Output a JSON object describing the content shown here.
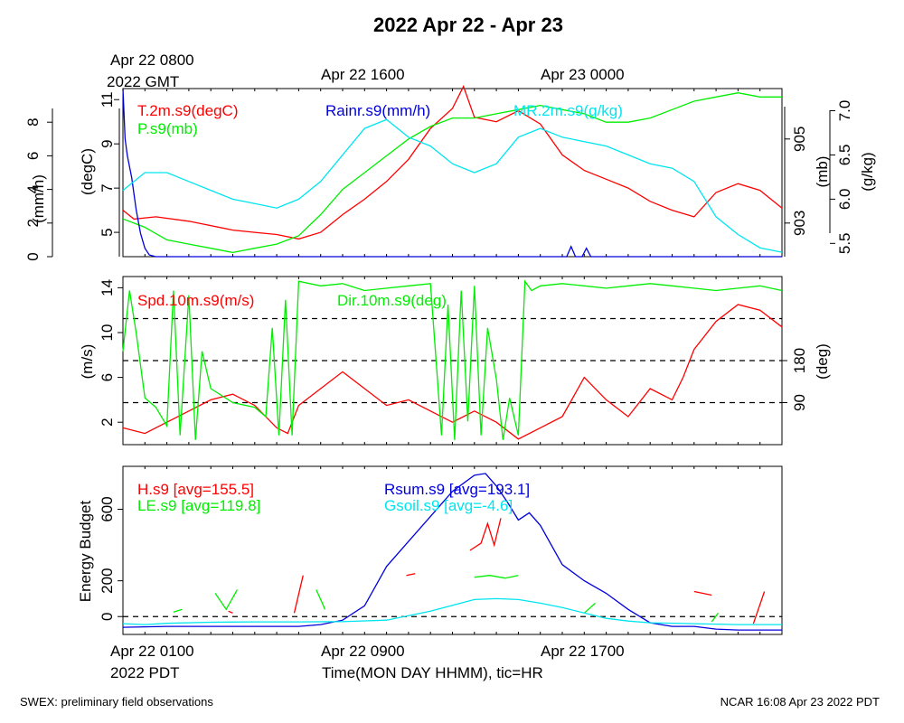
{
  "chart_data": [
    {
      "type": "line",
      "title": "2022 Apr 22 - Apr 23",
      "top_axis_labels": [
        "Apr 22 0800",
        "2022 GMT",
        "Apr 22 1600",
        "Apr 23 0000"
      ],
      "x_hours": [
        0,
        30
      ],
      "left_axes": [
        {
          "unit": "(mm/h)",
          "ticks": [
            "0",
            "2",
            "4",
            "6",
            "8"
          ],
          "range": [
            0,
            10
          ]
        },
        {
          "unit": "(degC)",
          "ticks": [
            "5",
            "7",
            "9",
            "11"
          ],
          "range": [
            3.9,
            11.5
          ]
        }
      ],
      "right_axes": [
        {
          "unit": "(mb)",
          "ticks": [
            "903",
            "905"
          ],
          "range": [
            902.2,
            906.2
          ]
        },
        {
          "unit": "(g/kg)",
          "ticks": [
            "5.5",
            "6.0",
            "6.5",
            "7.0"
          ],
          "range": [
            5.35,
            7.25
          ]
        }
      ],
      "series": [
        {
          "name": "T.2m.s9(degC)",
          "color": "#ff0000",
          "axis": "degC",
          "x": [
            0,
            0.5,
            1.5,
            3,
            5,
            6,
            7,
            8,
            9,
            10,
            11,
            12,
            13,
            14,
            15,
            15.5,
            16,
            17,
            18,
            19,
            20,
            21,
            22,
            23,
            24,
            25,
            26,
            27,
            28,
            29,
            30
          ],
          "y": [
            6.0,
            5.6,
            5.7,
            5.5,
            5.1,
            5.0,
            4.9,
            4.7,
            5.0,
            5.8,
            6.5,
            7.3,
            8.3,
            9.7,
            10.6,
            11.6,
            10.2,
            10.0,
            10.5,
            9.9,
            8.5,
            7.8,
            7.4,
            7.0,
            6.4,
            6.0,
            5.7,
            6.8,
            7.2,
            6.9,
            6.1
          ]
        },
        {
          "name": "P.s9(mb)",
          "color": "#00ee00",
          "axis": "mb",
          "x": [
            0,
            1,
            2,
            3,
            4,
            5,
            6,
            7,
            8,
            9,
            10,
            11,
            12,
            13,
            14,
            15,
            16,
            17,
            18,
            19,
            20,
            21,
            22,
            23,
            24,
            25,
            26,
            27,
            28,
            29,
            30
          ],
          "y": [
            903.1,
            902.9,
            902.6,
            902.5,
            902.4,
            902.3,
            902.4,
            902.5,
            902.7,
            903.2,
            903.8,
            904.2,
            904.6,
            905.0,
            905.3,
            905.5,
            905.5,
            905.6,
            905.7,
            905.8,
            905.7,
            905.6,
            905.4,
            905.4,
            905.5,
            905.7,
            905.9,
            906.0,
            906.1,
            906.0,
            906.0
          ]
        },
        {
          "name": "Rainr.s9(mm/h)",
          "color": "#0000dd",
          "axis": "mm/h",
          "x": [
            0,
            0.1,
            0.2,
            0.4,
            0.6,
            0.8,
            1.0,
            1.2,
            1.5,
            2,
            10,
            20.2,
            20.4,
            20.6,
            20.9,
            21.1,
            21.3,
            30
          ],
          "y": [
            10,
            7.0,
            6.0,
            4.7,
            2.8,
            1.4,
            0.5,
            0.1,
            0,
            0,
            0,
            0,
            0.6,
            0,
            0,
            0.5,
            0,
            0
          ]
        },
        {
          "name": "MR.2m.s9(g/kg)",
          "color": "#00e5ee",
          "axis": "g/kg",
          "x": [
            0,
            1,
            2,
            3,
            4,
            5,
            6,
            7,
            8,
            9,
            10,
            11,
            12,
            13,
            14,
            15,
            16,
            17,
            18,
            19,
            20,
            21,
            22,
            23,
            24,
            25,
            26,
            27,
            28,
            29,
            30
          ],
          "y": [
            6.1,
            6.3,
            6.3,
            6.2,
            6.1,
            6.0,
            5.95,
            5.9,
            6.0,
            6.2,
            6.5,
            6.8,
            6.9,
            6.7,
            6.6,
            6.4,
            6.3,
            6.4,
            6.7,
            6.8,
            6.7,
            6.65,
            6.6,
            6.5,
            6.4,
            6.35,
            6.2,
            5.8,
            5.6,
            5.45,
            5.4
          ]
        }
      ]
    },
    {
      "type": "line",
      "x_hours": [
        0,
        30
      ],
      "left_axis": {
        "unit": "(m/s)",
        "ticks": [
          "2",
          "6",
          "10",
          "14"
        ],
        "range": [
          0,
          15
        ]
      },
      "right_axis": {
        "unit": "(deg)",
        "ticks": [
          "90",
          "180"
        ],
        "range": [
          0,
          360
        ]
      },
      "reference_lines_deg": [
        90,
        180,
        270
      ],
      "series": [
        {
          "name": "Spd.10m.s9(m/s)",
          "color": "#ff0000",
          "axis": "m/s",
          "x": [
            0,
            1,
            2,
            3,
            4,
            5,
            6,
            7,
            7.5,
            8,
            9,
            10,
            11,
            12,
            13,
            14,
            15,
            16,
            17,
            18,
            19,
            20,
            21,
            22,
            23,
            24,
            25,
            25.5,
            26,
            27,
            28,
            29,
            30
          ],
          "y": [
            1.5,
            1.0,
            2.0,
            3.0,
            4.0,
            4.5,
            3.5,
            1.5,
            1.0,
            3.5,
            5.0,
            6.5,
            5.0,
            3.5,
            4.0,
            3.0,
            2.0,
            3.0,
            2.0,
            0.5,
            1.5,
            2.5,
            6.0,
            4.0,
            2.5,
            5.0,
            4.0,
            6.0,
            8.5,
            11.0,
            12.5,
            12.0,
            10.5
          ]
        },
        {
          "name": "Dir.10m.s9(deg)",
          "color": "#00ee00",
          "axis": "deg",
          "x": [
            0,
            0.3,
            0.6,
            1,
            1.5,
            2,
            2.3,
            2.6,
            3,
            3.3,
            3.6,
            4,
            5,
            6,
            6.5,
            6.8,
            7.1,
            7.4,
            7.7,
            8,
            9,
            10,
            11,
            12,
            13,
            14,
            14.5,
            14.8,
            15.1,
            15.4,
            15.7,
            16,
            16.3,
            16.6,
            17,
            17.3,
            17.6,
            18,
            18.3,
            18.6,
            19,
            20,
            21,
            22,
            23,
            24,
            25,
            26,
            27,
            28,
            29,
            30
          ],
          "y": [
            200,
            330,
            240,
            100,
            80,
            40,
            330,
            20,
            320,
            10,
            200,
            120,
            90,
            80,
            60,
            250,
            20,
            310,
            20,
            350,
            340,
            345,
            330,
            335,
            340,
            345,
            20,
            300,
            10,
            330,
            50,
            340,
            20,
            250,
            140,
            10,
            100,
            20,
            350,
            330,
            340,
            345,
            340,
            335,
            340,
            345,
            340,
            335,
            330,
            335,
            340,
            330
          ]
        }
      ]
    },
    {
      "type": "line",
      "x_hours": [
        0,
        30
      ],
      "bottom_axis_labels": [
        "Apr 22 0100",
        "Apr 22 0900",
        "Apr 22 1700"
      ],
      "x_date_label": "2022 PDT",
      "xlabel": "Time(MON DAY HHMM), tic=HR",
      "ylabel": "Energy Budget",
      "y_ticks": [
        "0",
        "200",
        "600"
      ],
      "ylim": [
        -100,
        840
      ],
      "series": [
        {
          "name": "H.s9 [avg=155.5]",
          "color": "#ff0000",
          "segments": [
            {
              "x": [
                12.9,
                13.3
              ],
              "y": [
                230,
                240
              ]
            },
            {
              "x": [
                15.8,
                16.3,
                16.6,
                16.9,
                17.2
              ],
              "y": [
                370,
                410,
                520,
                400,
                550
              ]
            },
            {
              "x": [
                4.8,
                5.0
              ],
              "y": [
                30,
                20
              ]
            },
            {
              "x": [
                7.8,
                8.2
              ],
              "y": [
                20,
                230
              ]
            },
            {
              "x": [
                26.0,
                26.8
              ],
              "y": [
                140,
                120
              ]
            },
            {
              "x": [
                28.7,
                29.2
              ],
              "y": [
                -40,
                140
              ]
            }
          ]
        },
        {
          "name": "LE.s9 [avg=119.8]",
          "color": "#00ee00",
          "segments": [
            {
              "x": [
                2.3,
                2.7
              ],
              "y": [
                25,
                40
              ]
            },
            {
              "x": [
                4.2,
                4.7,
                5.2
              ],
              "y": [
                130,
                40,
                150
              ]
            },
            {
              "x": [
                8.8,
                9.2
              ],
              "y": [
                150,
                40
              ]
            },
            {
              "x": [
                16.0,
                16.7,
                17.4,
                18.0
              ],
              "y": [
                220,
                230,
                215,
                230
              ]
            },
            {
              "x": [
                21.0,
                21.5
              ],
              "y": [
                20,
                75
              ]
            },
            {
              "x": [
                26.8,
                27.1
              ],
              "y": [
                -30,
                20
              ]
            }
          ]
        },
        {
          "name": "Rsum.s9 [avg=193.1]",
          "color": "#0000dd",
          "x": [
            0,
            2,
            4,
            6,
            8,
            9,
            10,
            11,
            12,
            13,
            14,
            15,
            16,
            16.5,
            17,
            17.5,
            18,
            18.5,
            19,
            20,
            21,
            22,
            23,
            24,
            25,
            26,
            27,
            28,
            29,
            30
          ],
          "y": [
            -60,
            -55,
            -55,
            -55,
            -55,
            -45,
            -20,
            60,
            280,
            420,
            560,
            700,
            790,
            800,
            730,
            640,
            540,
            580,
            510,
            290,
            200,
            130,
            40,
            -35,
            -55,
            -55,
            -70,
            -75,
            -75,
            -75
          ]
        },
        {
          "name": "Gsoil.s9 [avg=-4.6]",
          "color": "#00e5ee",
          "x": [
            0,
            1,
            2,
            4,
            6,
            8,
            10,
            12,
            14,
            16,
            17,
            18,
            19,
            20,
            21,
            22,
            23,
            24,
            26,
            28,
            30
          ],
          "y": [
            -40,
            -45,
            -38,
            -32,
            -30,
            -30,
            -28,
            -20,
            30,
            95,
            100,
            95,
            75,
            50,
            20,
            -10,
            -25,
            -35,
            -40,
            -45,
            -45
          ]
        }
      ],
      "reference_lines": [
        0
      ]
    }
  ],
  "footer": {
    "left": "SWEX: preliminary field observations",
    "right": "NCAR 16:08 Apr 23 2022 PDT"
  }
}
